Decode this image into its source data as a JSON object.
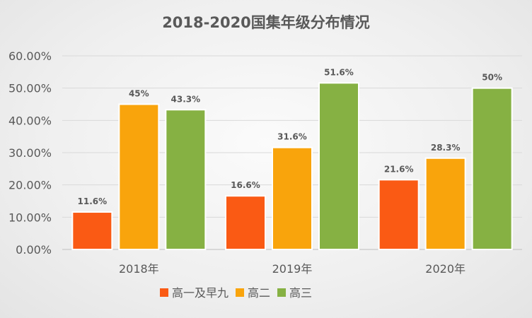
{
  "chart_data": {
    "type": "bar",
    "title": "2018-2020国集年级分布情况",
    "categories": [
      "2018年",
      "2019年",
      "2020年"
    ],
    "series": [
      {
        "name": "高一及早九",
        "color": "#fa5a14",
        "values": [
          11.6,
          16.6,
          21.6
        ],
        "labels": [
          "11.6%",
          "16.6%",
          "21.6%"
        ]
      },
      {
        "name": "高二",
        "color": "#f9a40c",
        "values": [
          45,
          31.6,
          28.3
        ],
        "labels": [
          "45%",
          "31.6%",
          "28.3%"
        ]
      },
      {
        "name": "高三",
        "color": "#86b143",
        "values": [
          43.3,
          51.6,
          50
        ],
        "labels": [
          "43.3%",
          "51.6%",
          "50%"
        ]
      }
    ],
    "ylim": [
      0,
      60
    ],
    "yticks": [
      "0.00%",
      "10.00%",
      "20.00%",
      "30.00%",
      "40.00%",
      "50.00%",
      "60.00%"
    ],
    "grid": true,
    "legend_position": "bottom",
    "xlabel": "",
    "ylabel": ""
  }
}
